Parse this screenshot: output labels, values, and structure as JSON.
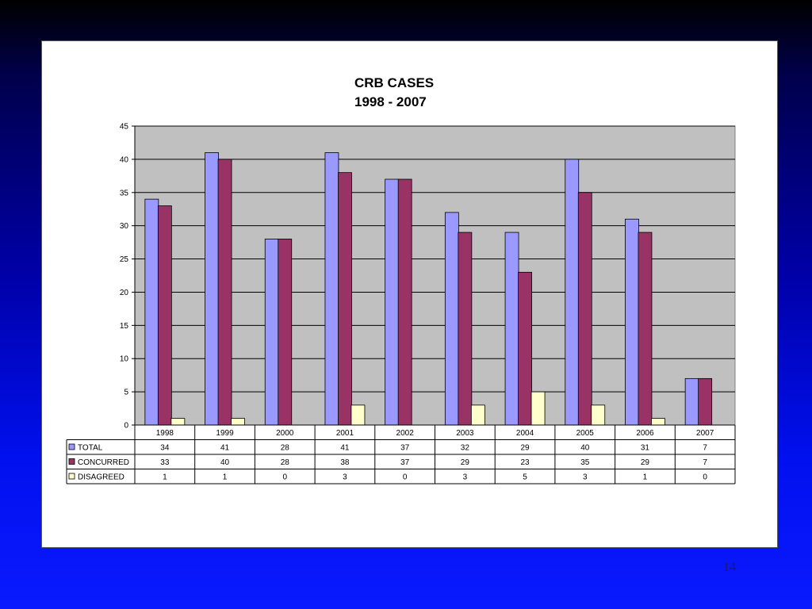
{
  "slide": {
    "page_number": "14"
  },
  "colors": {
    "plot_bg": "#c0c0c0",
    "total": "#9999ff",
    "concurred": "#993366",
    "disagreed": "#ffffcc"
  },
  "chart_data": {
    "type": "bar",
    "title_lines": [
      "CRB CASES",
      "1998 - 2007"
    ],
    "categories": [
      "1998",
      "1999",
      "2000",
      "2001",
      "2002",
      "2003",
      "2004",
      "2005",
      "2006",
      "2007"
    ],
    "series": [
      {
        "name": "TOTAL",
        "color": "#9999ff",
        "values": [
          34,
          41,
          28,
          41,
          37,
          32,
          29,
          40,
          31,
          7
        ]
      },
      {
        "name": "CONCURRED",
        "color": "#993366",
        "values": [
          33,
          40,
          28,
          38,
          37,
          29,
          23,
          35,
          29,
          7
        ]
      },
      {
        "name": "DISAGREED",
        "color": "#ffffcc",
        "values": [
          1,
          1,
          0,
          3,
          0,
          3,
          5,
          3,
          1,
          0
        ]
      }
    ],
    "ylim": [
      0,
      45
    ],
    "yticks": [
      0,
      5,
      10,
      15,
      20,
      25,
      30,
      35,
      40,
      45
    ],
    "grid": true,
    "legend": "data-table"
  }
}
